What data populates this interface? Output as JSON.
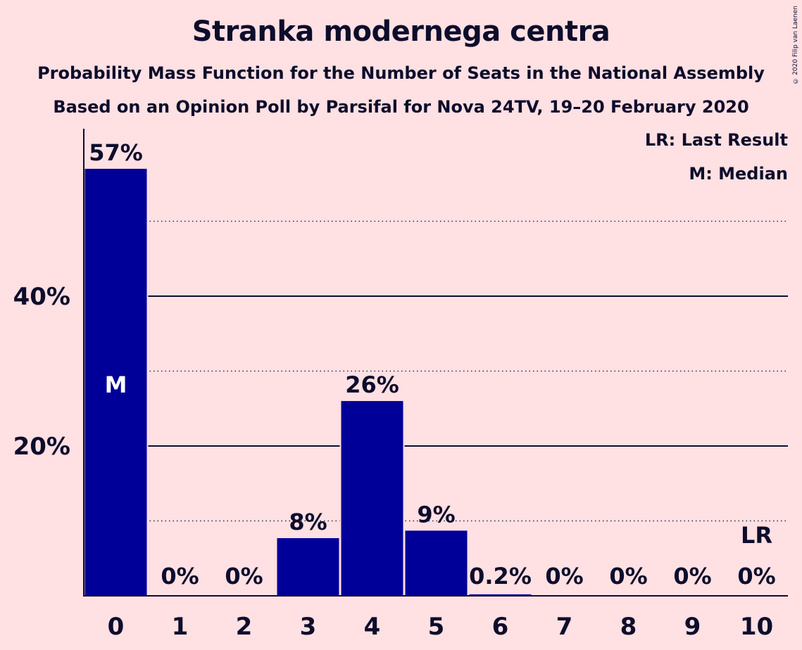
{
  "chart_data": {
    "type": "bar",
    "title": "Stranka modernega centra",
    "subtitle": "Probability Mass Function for the Number of Seats in the National Assembly",
    "subtitle2": "Based on an Opinion Poll by Parsifal for Nova 24TV, 19–20 February 2020",
    "copyright": "© 2020 Filip van Laenen",
    "categories": [
      "0",
      "1",
      "2",
      "3",
      "4",
      "5",
      "6",
      "7",
      "8",
      "9",
      "10"
    ],
    "values": [
      57,
      0,
      0,
      7.7,
      26,
      8.7,
      0.2,
      0,
      0,
      0,
      0
    ],
    "data_labels": [
      "57%",
      "0%",
      "0%",
      "8%",
      "26%",
      "9%",
      "0.2%",
      "0%",
      "0%",
      "0%",
      "0%"
    ],
    "ylim": [
      0,
      62
    ],
    "yticks": [
      {
        "value": 20,
        "label": "20%"
      },
      {
        "value": 40,
        "label": "40%"
      }
    ],
    "minor_gridlines": [
      10,
      30,
      50
    ],
    "median_index": 0,
    "median_label": "M",
    "last_result_index": 10,
    "last_result_label": "LR",
    "legend": [
      "LR: Last Result",
      "M: Median"
    ],
    "legend_position": "top-right",
    "bar_color": "#000099",
    "background_color": "#FFE0E3"
  }
}
